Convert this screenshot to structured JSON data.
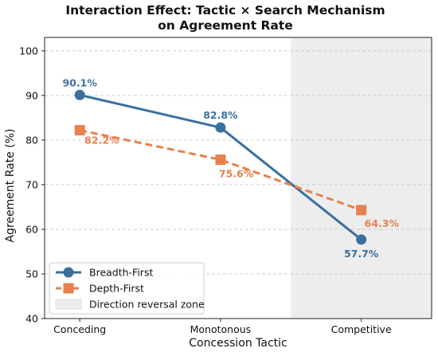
{
  "chart_data": {
    "type": "line",
    "title": "Interaction Effect: Tactic × Search Mechanism",
    "subtitle": "on Agreement Rate",
    "xlabel": "Concession Tactic",
    "ylabel": "Agreement Rate (%)",
    "categories": [
      "Conceding",
      "Monotonous",
      "Competitive"
    ],
    "ylim": [
      40,
      103
    ],
    "yticks": [
      40,
      50,
      60,
      70,
      80,
      90,
      100
    ],
    "grid": true,
    "legend_position": "bottom-left",
    "series": [
      {
        "name": "Breadth-First",
        "values": [
          90.1,
          82.8,
          57.7
        ],
        "labels": [
          "90.1%",
          "82.8%",
          "57.7%"
        ],
        "color": "#3b6f9e",
        "marker": "circle",
        "line_style": "solid"
      },
      {
        "name": "Depth-First",
        "values": [
          82.2,
          75.6,
          64.3
        ],
        "labels": [
          "82.2%",
          "75.6%",
          "64.3%"
        ],
        "color": "#e8804f",
        "marker": "square",
        "line_style": "dashed"
      }
    ],
    "shaded_region": {
      "name": "Direction reversal zone",
      "x_start": 1.5,
      "x_end": 2.5,
      "color": "#ededed"
    }
  }
}
